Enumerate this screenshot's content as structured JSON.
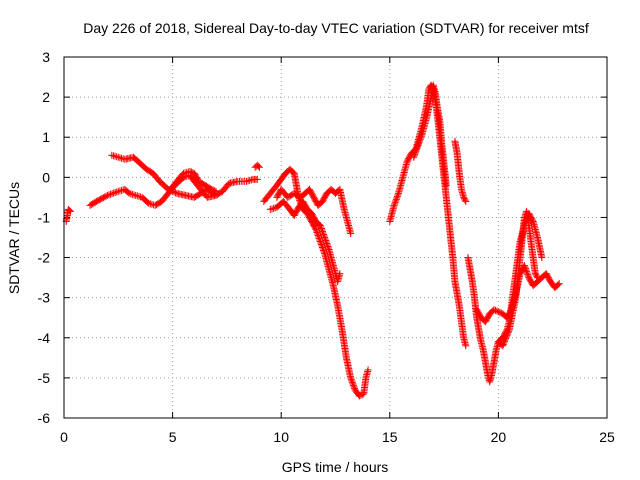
{
  "chart_data": {
    "type": "scatter",
    "title": "Day 226 of 2018, Sidereal Day-to-day VTEC variation (SDTVAR) for receiver mtsf",
    "xlabel": "GPS time / hours",
    "ylabel": "SDTVAR / TECUs",
    "xlim": [
      0,
      25
    ],
    "ylim": [
      -6,
      3
    ],
    "x_ticks": [
      0,
      5,
      10,
      15,
      20,
      25
    ],
    "x_tick_labels": [
      "0",
      "5",
      "10",
      "15",
      "20",
      "25"
    ],
    "y_ticks": [
      -6,
      -5,
      -4,
      -3,
      -2,
      -1,
      0,
      1,
      2,
      3
    ],
    "y_tick_labels": [
      "-6",
      "-5",
      "-4",
      "-3",
      "-2",
      "-1",
      "0",
      "1",
      "2",
      "3"
    ],
    "grid": true,
    "marker": "plus",
    "color": "#ff0000",
    "series": [
      {
        "name": "s1",
        "points": [
          [
            0.1,
            -1.1
          ],
          [
            0.2,
            -0.8
          ],
          [
            0.3,
            -0.85
          ]
        ]
      },
      {
        "name": "s2",
        "points": [
          [
            1.2,
            -0.7
          ],
          [
            1.5,
            -0.6
          ],
          [
            2.0,
            -0.45
          ],
          [
            2.5,
            -0.35
          ],
          [
            2.8,
            -0.3
          ],
          [
            3.0,
            -0.4
          ],
          [
            3.3,
            -0.45
          ],
          [
            3.6,
            -0.5
          ],
          [
            3.9,
            -0.65
          ],
          [
            4.2,
            -0.7
          ],
          [
            4.5,
            -0.6
          ],
          [
            4.8,
            -0.4
          ],
          [
            5.1,
            -0.2
          ],
          [
            5.5,
            0.0
          ],
          [
            5.8,
            0.05
          ],
          [
            6.0,
            -0.1
          ],
          [
            6.3,
            -0.3
          ],
          [
            6.6,
            -0.5
          ],
          [
            7.0,
            -0.45
          ],
          [
            7.3,
            -0.35
          ],
          [
            7.6,
            -0.15
          ],
          [
            8.0,
            -0.1
          ],
          [
            8.4,
            -0.1
          ],
          [
            8.7,
            -0.05
          ],
          [
            8.9,
            -0.05
          ]
        ]
      },
      {
        "name": "s3",
        "points": [
          [
            2.2,
            0.55
          ],
          [
            2.5,
            0.5
          ],
          [
            2.8,
            0.45
          ],
          [
            3.2,
            0.5
          ],
          [
            3.5,
            0.35
          ],
          [
            3.8,
            0.2
          ],
          [
            4.1,
            0.1
          ],
          [
            4.4,
            -0.1
          ],
          [
            4.8,
            -0.3
          ],
          [
            5.2,
            -0.4
          ],
          [
            5.6,
            -0.45
          ],
          [
            6.0,
            -0.5
          ],
          [
            6.3,
            -0.4
          ],
          [
            6.6,
            -0.3
          ],
          [
            7.0,
            -0.45
          ]
        ]
      },
      {
        "name": "s4",
        "points": [
          [
            4.9,
            -0.3
          ],
          [
            5.2,
            -0.1
          ],
          [
            5.5,
            0.1
          ],
          [
            5.8,
            0.15
          ],
          [
            6.0,
            0.1
          ],
          [
            6.2,
            -0.1
          ],
          [
            6.5,
            -0.2
          ],
          [
            6.8,
            -0.3
          ],
          [
            7.0,
            -0.35
          ]
        ]
      },
      {
        "name": "s5",
        "points": [
          [
            8.8,
            0.25
          ],
          [
            8.9,
            0.3
          ],
          [
            9.0,
            0.25
          ]
        ]
      },
      {
        "name": "s6",
        "points": [
          [
            9.2,
            -0.6
          ],
          [
            9.5,
            -0.4
          ],
          [
            9.8,
            -0.2
          ],
          [
            10.0,
            -0.05
          ],
          [
            10.2,
            0.1
          ],
          [
            10.4,
            0.2
          ],
          [
            10.6,
            0.1
          ],
          [
            10.7,
            -0.2
          ],
          [
            10.8,
            -0.5
          ],
          [
            11.0,
            -0.8
          ],
          [
            11.2,
            -0.9
          ],
          [
            11.4,
            -1.1
          ],
          [
            11.6,
            -1.3
          ],
          [
            11.8,
            -1.6
          ],
          [
            12.0,
            -1.9
          ],
          [
            12.2,
            -2.3
          ],
          [
            12.4,
            -2.7
          ],
          [
            12.6,
            -3.2
          ],
          [
            12.8,
            -3.8
          ],
          [
            13.0,
            -4.5
          ],
          [
            13.2,
            -5.0
          ],
          [
            13.4,
            -5.3
          ],
          [
            13.6,
            -5.45
          ],
          [
            13.8,
            -5.4
          ],
          [
            13.9,
            -5.0
          ],
          [
            14.0,
            -4.8
          ]
        ]
      },
      {
        "name": "s7",
        "points": [
          [
            9.5,
            -0.8
          ],
          [
            9.8,
            -0.75
          ],
          [
            10.1,
            -0.6
          ],
          [
            10.4,
            -0.8
          ],
          [
            10.6,
            -0.95
          ],
          [
            10.8,
            -0.75
          ],
          [
            11.0,
            -0.6
          ],
          [
            11.2,
            -0.8
          ],
          [
            11.4,
            -0.9
          ],
          [
            11.6,
            -1.1
          ],
          [
            11.8,
            -1.2
          ],
          [
            12.0,
            -1.5
          ],
          [
            12.2,
            -1.8
          ],
          [
            12.4,
            -2.2
          ],
          [
            12.6,
            -2.6
          ],
          [
            12.7,
            -2.4
          ]
        ]
      },
      {
        "name": "s8",
        "points": [
          [
            9.8,
            -0.5
          ],
          [
            10.0,
            -0.3
          ],
          [
            10.3,
            -0.5
          ],
          [
            10.6,
            -0.4
          ],
          [
            10.9,
            -0.5
          ],
          [
            11.1,
            -0.4
          ],
          [
            11.3,
            -0.3
          ],
          [
            11.5,
            -0.5
          ],
          [
            11.7,
            -0.7
          ],
          [
            11.9,
            -0.6
          ],
          [
            12.1,
            -0.4
          ],
          [
            12.3,
            -0.3
          ],
          [
            12.5,
            -0.4
          ],
          [
            12.7,
            -0.3
          ],
          [
            12.9,
            -0.8
          ],
          [
            13.1,
            -1.2
          ],
          [
            13.2,
            -1.4
          ]
        ]
      },
      {
        "name": "s9",
        "points": [
          [
            15.0,
            -1.1
          ],
          [
            15.2,
            -0.7
          ],
          [
            15.4,
            -0.4
          ],
          [
            15.6,
            0.0
          ],
          [
            15.8,
            0.4
          ],
          [
            16.0,
            0.6
          ],
          [
            16.2,
            0.7
          ],
          [
            16.3,
            0.9
          ],
          [
            16.5,
            1.3
          ],
          [
            16.7,
            1.8
          ],
          [
            16.8,
            2.2
          ],
          [
            16.9,
            2.3
          ],
          [
            17.0,
            2.2
          ],
          [
            17.1,
            1.9
          ],
          [
            17.2,
            1.5
          ],
          [
            17.3,
            1.0
          ],
          [
            17.4,
            0.5
          ],
          [
            17.5,
            0.0
          ],
          [
            17.6,
            -0.5
          ],
          [
            17.7,
            -1.0
          ],
          [
            17.8,
            -1.5
          ],
          [
            17.9,
            -2.0
          ],
          [
            18.0,
            -2.6
          ],
          [
            18.1,
            -2.9
          ],
          [
            18.2,
            -3.2
          ],
          [
            18.3,
            -3.6
          ],
          [
            18.4,
            -4.0
          ],
          [
            18.5,
            -4.2
          ]
        ]
      },
      {
        "name": "s10",
        "points": [
          [
            16.1,
            0.5
          ],
          [
            16.3,
            0.8
          ],
          [
            16.5,
            1.1
          ],
          [
            16.7,
            1.5
          ],
          [
            16.9,
            2.0
          ],
          [
            17.0,
            2.3
          ],
          [
            17.1,
            2.1
          ],
          [
            17.2,
            1.7
          ],
          [
            17.3,
            1.4
          ],
          [
            17.4,
            0.8
          ],
          [
            17.5,
            0.3
          ],
          [
            17.6,
            -0.2
          ]
        ]
      },
      {
        "name": "s11",
        "points": [
          [
            18.0,
            0.9
          ],
          [
            18.1,
            0.6
          ],
          [
            18.2,
            0.1
          ],
          [
            18.3,
            -0.3
          ],
          [
            18.4,
            -0.5
          ],
          [
            18.5,
            -0.6
          ]
        ]
      },
      {
        "name": "s12",
        "points": [
          [
            18.6,
            -2.0
          ],
          [
            18.7,
            -2.3
          ],
          [
            18.8,
            -2.6
          ],
          [
            18.9,
            -3.0
          ],
          [
            19.0,
            -3.5
          ],
          [
            19.1,
            -3.8
          ],
          [
            19.2,
            -4.1
          ],
          [
            19.3,
            -4.3
          ],
          [
            19.4,
            -4.6
          ],
          [
            19.5,
            -4.9
          ],
          [
            19.6,
            -5.1
          ],
          [
            19.7,
            -4.9
          ],
          [
            19.8,
            -4.6
          ],
          [
            19.9,
            -4.3
          ],
          [
            20.0,
            -4.1
          ],
          [
            20.2,
            -4.0
          ],
          [
            20.4,
            -3.8
          ],
          [
            20.5,
            -3.6
          ],
          [
            20.6,
            -3.2
          ],
          [
            20.7,
            -2.8
          ],
          [
            20.8,
            -2.4
          ],
          [
            20.9,
            -2.0
          ],
          [
            21.0,
            -1.6
          ],
          [
            21.2,
            -1.2
          ],
          [
            21.4,
            -0.9
          ],
          [
            21.6,
            -1.1
          ],
          [
            21.8,
            -1.5
          ],
          [
            22.0,
            -2.0
          ]
        ]
      },
      {
        "name": "s13",
        "points": [
          [
            19.0,
            -3.3
          ],
          [
            19.2,
            -3.5
          ],
          [
            19.4,
            -3.6
          ],
          [
            19.6,
            -3.4
          ],
          [
            19.8,
            -3.3
          ],
          [
            20.0,
            -3.35
          ],
          [
            20.2,
            -3.4
          ],
          [
            20.4,
            -3.5
          ],
          [
            20.6,
            -3.3
          ],
          [
            20.8,
            -2.9
          ],
          [
            21.0,
            -2.4
          ],
          [
            21.2,
            -2.2
          ],
          [
            21.4,
            -2.5
          ],
          [
            21.6,
            -2.7
          ],
          [
            21.8,
            -2.6
          ],
          [
            22.0,
            -2.5
          ],
          [
            22.2,
            -2.4
          ],
          [
            22.4,
            -2.6
          ],
          [
            22.6,
            -2.75
          ],
          [
            22.8,
            -2.65
          ]
        ]
      },
      {
        "name": "s14",
        "points": [
          [
            20.0,
            -4.1
          ],
          [
            20.2,
            -4.2
          ],
          [
            20.5,
            -3.8
          ],
          [
            20.8,
            -3.0
          ],
          [
            21.0,
            -2.0
          ],
          [
            21.1,
            -1.5
          ],
          [
            21.2,
            -1.0
          ],
          [
            21.3,
            -0.85
          ],
          [
            21.4,
            -1.2
          ],
          [
            21.5,
            -1.6
          ],
          [
            21.6,
            -2.0
          ],
          [
            21.7,
            -2.4
          ],
          [
            21.8,
            -2.5
          ]
        ]
      }
    ]
  }
}
